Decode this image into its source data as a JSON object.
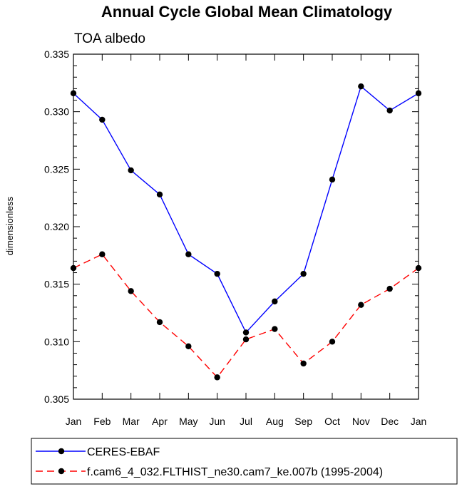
{
  "chart_data": {
    "type": "line",
    "title": "Annual Cycle Global Mean Climatology",
    "subtitle": "TOA albedo",
    "ylabel": "dimensionless",
    "xlabel": "",
    "categories": [
      "Jan",
      "Feb",
      "Mar",
      "Apr",
      "May",
      "Jun",
      "Jul",
      "Aug",
      "Sep",
      "Oct",
      "Nov",
      "Dec",
      "Jan"
    ],
    "ylim": [
      0.305,
      0.335
    ],
    "yticks": [
      "0.305",
      "0.310",
      "0.315",
      "0.320",
      "0.325",
      "0.330",
      "0.335"
    ],
    "grid": false,
    "legend_position": "bottom",
    "series": [
      {
        "name": "CERES-EBAF",
        "color": "#0000ff",
        "line_style": "solid",
        "marker": "filled-circle",
        "values": [
          0.3316,
          0.3293,
          0.3249,
          0.3228,
          0.3176,
          0.3159,
          0.3108,
          0.3135,
          0.3159,
          0.3241,
          0.3322,
          0.3301,
          0.3316
        ]
      },
      {
        "name": "f.cam6_4_032.FLTHIST_ne30.cam7_ke.007b (1995-2004)",
        "color": "#ff0000",
        "line_style": "dashed",
        "marker": "filled-circle",
        "values": [
          0.3164,
          0.3176,
          0.3144,
          0.3117,
          0.3096,
          0.3069,
          0.3102,
          0.3111,
          0.3081,
          0.31,
          0.3132,
          0.3146,
          0.3164
        ]
      }
    ]
  }
}
